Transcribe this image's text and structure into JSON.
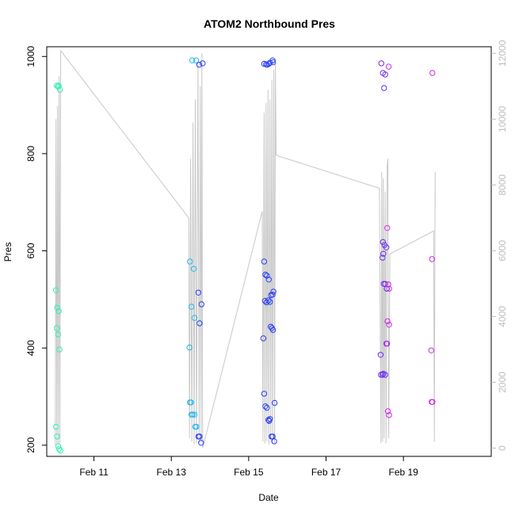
{
  "chart_data": {
    "type": "scatter",
    "title": "ATOM2 Northbound Pres",
    "xlabel": "Date",
    "ylabel": "Pres",
    "x_ticks": [
      {
        "value": 11.0,
        "label": "Feb 11"
      },
      {
        "value": 13.0,
        "label": "Feb 13"
      },
      {
        "value": 15.0,
        "label": "Feb 15"
      },
      {
        "value": 17.0,
        "label": "Feb 17"
      },
      {
        "value": 19.0,
        "label": "Feb 19"
      }
    ],
    "y_ticks": [
      "200",
      "400",
      "600",
      "800",
      "1000"
    ],
    "y2_ticks": [
      "0",
      "2000",
      "4000",
      "6000",
      "8000",
      "10000",
      "12000"
    ],
    "xlim": [
      9.78,
      21.27
    ],
    "ylim": [
      177,
      1020
    ],
    "y2lim": [
      -250,
      12200
    ],
    "grid": false,
    "colors": {
      "line": "#c8c8c8",
      "right_axis": "#bdbdbd",
      "palette": [
        "#2ef2b4",
        "#22b8ef",
        "#2a3fef",
        "#6a2cf0",
        "#cf2be9"
      ]
    },
    "series": [
      {
        "name": "",
        "type": "points",
        "points": [
          [
            10.04,
            940
          ],
          [
            10.07,
            938
          ],
          [
            10.09,
            940
          ],
          [
            10.12,
            932
          ],
          [
            10.02,
            519
          ],
          [
            10.05,
            483
          ],
          [
            10.09,
            476
          ],
          [
            10.04,
            441
          ],
          [
            10.07,
            428
          ],
          [
            10.11,
            397
          ],
          [
            10.02,
            238
          ],
          [
            10.05,
            218
          ],
          [
            10.08,
            198
          ],
          [
            10.1,
            192
          ],
          [
            10.13,
            189
          ],
          [
            13.48,
            578
          ],
          [
            13.52,
            485
          ],
          [
            13.47,
            401
          ],
          [
            13.48,
            288
          ],
          [
            13.51,
            288
          ],
          [
            13.52,
            263
          ],
          [
            13.55,
            263
          ],
          [
            13.6,
            263
          ],
          [
            13.58,
            563
          ],
          [
            13.6,
            462
          ],
          [
            13.62,
            238
          ],
          [
            13.65,
            238
          ],
          [
            13.7,
            514
          ],
          [
            13.73,
            451
          ],
          [
            13.78,
            490
          ],
          [
            13.7,
            218
          ],
          [
            13.73,
            218
          ],
          [
            13.77,
            205
          ],
          [
            13.54,
            992
          ],
          [
            13.64,
            992
          ],
          [
            13.72,
            983
          ],
          [
            13.81,
            986
          ],
          [
            15.4,
            985
          ],
          [
            15.45,
            984
          ],
          [
            15.48,
            983
          ],
          [
            15.52,
            985
          ],
          [
            15.55,
            987
          ],
          [
            15.62,
            992
          ],
          [
            15.63,
            988
          ],
          [
            15.4,
            578
          ],
          [
            15.43,
            551
          ],
          [
            15.47,
            549
          ],
          [
            15.52,
            541
          ],
          [
            15.42,
            497
          ],
          [
            15.46,
            494
          ],
          [
            15.51,
            498
          ],
          [
            15.55,
            495
          ],
          [
            15.58,
            509
          ],
          [
            15.62,
            510
          ],
          [
            15.64,
            516
          ],
          [
            15.57,
            444
          ],
          [
            15.6,
            441
          ],
          [
            15.63,
            437
          ],
          [
            15.38,
            420
          ],
          [
            15.4,
            306
          ],
          [
            15.43,
            280
          ],
          [
            15.47,
            277
          ],
          [
            15.51,
            252
          ],
          [
            15.55,
            254
          ],
          [
            15.53,
            250
          ],
          [
            15.59,
            218
          ],
          [
            15.62,
            218
          ],
          [
            15.67,
            287
          ],
          [
            15.66,
            208
          ],
          [
            18.43,
            986
          ],
          [
            18.47,
            966
          ],
          [
            18.53,
            963
          ],
          [
            18.62,
            979
          ],
          [
            18.5,
            935
          ],
          [
            18.47,
            618
          ],
          [
            18.51,
            612
          ],
          [
            18.48,
            594
          ],
          [
            18.46,
            586
          ],
          [
            18.56,
            607
          ],
          [
            18.58,
            647
          ],
          [
            18.49,
            532
          ],
          [
            18.53,
            532
          ],
          [
            18.57,
            522
          ],
          [
            18.61,
            531
          ],
          [
            18.63,
            522
          ],
          [
            18.59,
            455
          ],
          [
            18.63,
            448
          ],
          [
            18.56,
            409
          ],
          [
            18.58,
            409
          ],
          [
            18.41,
            386
          ],
          [
            18.42,
            345
          ],
          [
            18.46,
            345
          ],
          [
            18.48,
            347
          ],
          [
            18.53,
            345
          ],
          [
            18.6,
            270
          ],
          [
            18.63,
            262
          ],
          [
            19.75,
            966
          ],
          [
            19.74,
            583
          ],
          [
            19.72,
            395
          ],
          [
            19.73,
            289
          ],
          [
            19.75,
            289
          ]
        ]
      },
      {
        "name": "",
        "type": "line",
        "axis": "right",
        "points": [
          [
            10.0,
            100
          ],
          [
            10.02,
            10000
          ],
          [
            10.04,
            120
          ],
          [
            10.06,
            10400
          ],
          [
            10.08,
            130
          ],
          [
            10.1,
            11300
          ],
          [
            10.12,
            150
          ],
          [
            10.14,
            12080
          ],
          [
            13.45,
            7000
          ],
          [
            13.47,
            300
          ],
          [
            13.5,
            8800
          ],
          [
            13.53,
            200
          ],
          [
            13.56,
            9900
          ],
          [
            13.59,
            120
          ],
          [
            13.62,
            10600
          ],
          [
            13.65,
            150
          ],
          [
            13.69,
            11750
          ],
          [
            13.72,
            150
          ],
          [
            13.75,
            11000
          ],
          [
            13.77,
            150
          ],
          [
            13.79,
            12000
          ],
          [
            13.81,
            0
          ],
          [
            15.35,
            7200
          ],
          [
            15.37,
            200
          ],
          [
            15.4,
            10200
          ],
          [
            15.42,
            150
          ],
          [
            15.45,
            10500
          ],
          [
            15.47,
            200
          ],
          [
            15.5,
            10900
          ],
          [
            15.52,
            100
          ],
          [
            15.55,
            10600
          ],
          [
            15.57,
            200
          ],
          [
            15.6,
            11200
          ],
          [
            15.62,
            150
          ],
          [
            15.65,
            11500
          ],
          [
            15.67,
            150
          ],
          [
            15.69,
            11700
          ],
          [
            15.71,
            8900
          ],
          [
            18.38,
            7900
          ],
          [
            18.42,
            150
          ],
          [
            18.44,
            8400
          ],
          [
            18.46,
            200
          ],
          [
            18.48,
            8200
          ],
          [
            18.5,
            300
          ],
          [
            18.53,
            7800
          ],
          [
            18.55,
            150
          ],
          [
            18.58,
            8600
          ],
          [
            18.6,
            8800
          ],
          [
            18.62,
            300
          ],
          [
            18.65,
            5900
          ],
          [
            19.78,
            6600
          ],
          [
            19.8,
            200
          ],
          [
            19.82,
            8400
          ],
          [
            19.82,
            7300
          ]
        ]
      }
    ]
  }
}
